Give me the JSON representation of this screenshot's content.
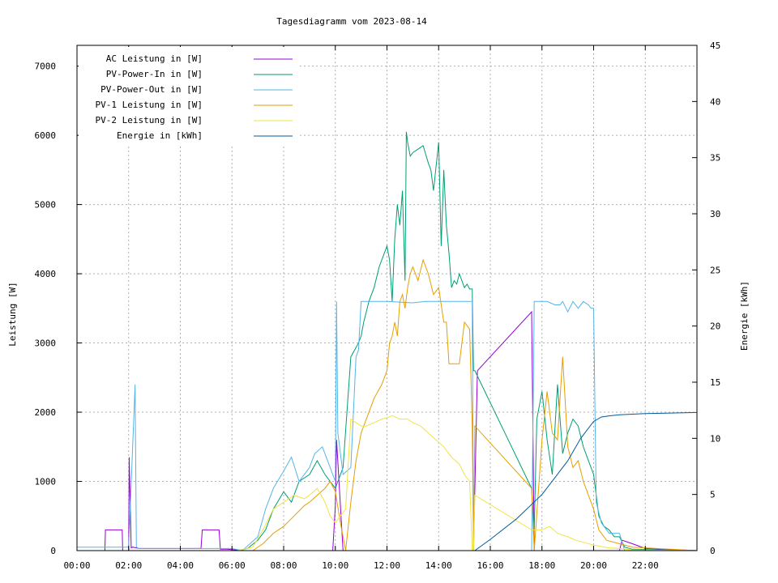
{
  "chart_data": {
    "type": "line",
    "title": "Tagesdiagramm vom 2023-08-14",
    "xlabel": "",
    "ylabel": "Leistung [W]",
    "y2label": "Energie [kWh]",
    "xlim": [
      0,
      24
    ],
    "ylim": [
      0,
      7300
    ],
    "y2lim": [
      0,
      45
    ],
    "grid": true,
    "legend_position": "top-left",
    "x_ticks": [
      "00:00",
      "02:00",
      "04:00",
      "06:00",
      "08:00",
      "10:00",
      "12:00",
      "14:00",
      "16:00",
      "18:00",
      "20:00",
      "22:00"
    ],
    "x_tick_values": [
      0,
      2,
      4,
      6,
      8,
      10,
      12,
      14,
      16,
      18,
      20,
      22
    ],
    "y_ticks": [
      0,
      1000,
      2000,
      3000,
      4000,
      5000,
      6000,
      7000
    ],
    "y2_ticks": [
      0,
      5,
      10,
      15,
      20,
      25,
      30,
      35,
      40,
      45
    ],
    "series": [
      {
        "name": "AC Leistung in [W]",
        "color": "#9400d3",
        "axis": "left",
        "x": [
          0,
          1.0,
          1.08,
          1.1,
          1.75,
          1.77,
          1.9,
          2.0,
          2.02,
          2.1,
          2.15,
          2.3,
          2.4,
          4.2,
          4.8,
          4.85,
          5.5,
          5.55,
          5.8,
          6.5,
          7,
          8,
          9,
          9.9,
          10.0,
          10.05,
          10.3,
          15.3,
          15.35,
          15.5,
          17.6,
          17.7,
          20.0,
          21.0,
          21.1,
          21.5,
          22.0,
          24.0
        ],
        "values": [
          0,
          0,
          0,
          300,
          300,
          0,
          0,
          0,
          1350,
          40,
          50,
          40,
          30,
          30,
          30,
          300,
          300,
          20,
          20,
          0,
          0,
          0,
          0,
          0,
          650,
          1600,
          0,
          0,
          0,
          2600,
          3450,
          0,
          0,
          0,
          150,
          100,
          30,
          0
        ]
      },
      {
        "name": "PV-Power-In in [W]",
        "color": "#009e73",
        "axis": "left",
        "x": [
          0,
          6.2,
          6.6,
          7.0,
          7.3,
          7.6,
          8.0,
          8.3,
          8.6,
          9.0,
          9.3,
          9.6,
          10.0,
          10.3,
          10.6,
          10.9,
          11.0,
          11.1,
          11.3,
          11.5,
          11.7,
          11.9,
          12.0,
          12.1,
          12.2,
          12.3,
          12.4,
          12.5,
          12.6,
          12.7,
          12.75,
          12.8,
          12.9,
          13.0,
          13.2,
          13.4,
          13.6,
          13.7,
          13.8,
          14.0,
          14.1,
          14.2,
          14.3,
          14.4,
          14.5,
          14.6,
          14.7,
          14.8,
          14.9,
          15.0,
          15.1,
          15.2,
          15.3,
          15.35,
          15.4,
          17.6,
          17.7,
          17.8,
          18.0,
          18.2,
          18.4,
          18.6,
          18.8,
          19.0,
          19.2,
          19.4,
          19.6,
          19.8,
          20.0,
          20.1,
          20.2,
          20.4,
          20.6,
          20.8,
          21.0,
          21.2,
          21.5,
          24.0
        ],
        "values": [
          0,
          0,
          30,
          150,
          300,
          600,
          850,
          700,
          1000,
          1100,
          1300,
          1100,
          900,
          1200,
          2800,
          3000,
          3100,
          3300,
          3600,
          3800,
          4100,
          4300,
          4400,
          4200,
          3600,
          4500,
          5000,
          4700,
          5200,
          3900,
          6050,
          5900,
          5700,
          5750,
          5800,
          5850,
          5600,
          5500,
          5200,
          5900,
          4400,
          5500,
          4700,
          4300,
          3800,
          3900,
          3850,
          4000,
          3900,
          3800,
          3850,
          3780,
          3780,
          2600,
          2600,
          900,
          300,
          1900,
          2300,
          1600,
          1100,
          2400,
          1400,
          1700,
          1900,
          1800,
          1500,
          1300,
          1100,
          800,
          500,
          350,
          300,
          200,
          200,
          50,
          20,
          0
        ]
      },
      {
        "name": "PV-Power-Out in [W]",
        "color": "#56b4e9",
        "axis": "left",
        "x": [
          0,
          1.1,
          2.0,
          2.25,
          2.3,
          2.4,
          6.0,
          6.4,
          7.0,
          7.3,
          7.6,
          8.0,
          8.3,
          8.6,
          9.0,
          9.2,
          9.5,
          9.7,
          10.0,
          10.05,
          10.1,
          10.3,
          10.6,
          10.8,
          10.9,
          11.0,
          11.1,
          11.3,
          11.5,
          11.7,
          11.8,
          12.0,
          12.5,
          13.0,
          13.5,
          14.0,
          14.5,
          15.0,
          15.3,
          15.35,
          15.4,
          17.6,
          17.7,
          18.0,
          18.2,
          18.5,
          18.7,
          18.8,
          19.0,
          19.2,
          19.4,
          19.6,
          19.8,
          19.9,
          20.0,
          20.1,
          20.3,
          20.6,
          21.0,
          21.2,
          21.5,
          24.0
        ],
        "values": [
          50,
          50,
          50,
          2400,
          50,
          30,
          30,
          0,
          200,
          600,
          900,
          1150,
          1350,
          1000,
          1200,
          1400,
          1500,
          1300,
          1000,
          3600,
          1700,
          1100,
          1200,
          2800,
          2900,
          3600,
          3600,
          3600,
          3600,
          3600,
          3600,
          3600,
          3590,
          3580,
          3600,
          3600,
          3600,
          3600,
          3600,
          0,
          0,
          0,
          3600,
          3600,
          3600,
          3550,
          3550,
          3600,
          3450,
          3600,
          3500,
          3600,
          3550,
          3500,
          3500,
          700,
          400,
          250,
          250,
          0,
          0,
          0
        ]
      },
      {
        "name": "PV-1 Leistung in [W]",
        "color": "#e69f00",
        "axis": "left",
        "x": [
          0,
          6.2,
          6.8,
          7.2,
          7.6,
          8.0,
          8.4,
          8.8,
          9.0,
          9.3,
          9.6,
          9.8,
          10.0,
          10.2,
          10.4,
          10.6,
          10.8,
          11.0,
          11.2,
          11.5,
          11.8,
          12.0,
          12.1,
          12.2,
          12.3,
          12.4,
          12.5,
          12.6,
          12.7,
          12.8,
          12.9,
          13.0,
          13.2,
          13.4,
          13.6,
          13.8,
          14.0,
          14.2,
          14.3,
          14.4,
          14.5,
          14.6,
          14.8,
          15.0,
          15.2,
          15.3,
          15.35,
          15.4,
          17.6,
          17.7,
          18.0,
          18.2,
          18.4,
          18.6,
          18.8,
          19.0,
          19.2,
          19.4,
          19.6,
          19.8,
          20.0,
          20.2,
          20.5,
          21.0,
          21.5,
          24.0
        ],
        "values": [
          0,
          0,
          0,
          100,
          250,
          350,
          500,
          650,
          700,
          800,
          900,
          1000,
          850,
          400,
          0,
          700,
          1300,
          1700,
          1900,
          2200,
          2400,
          2600,
          3000,
          3100,
          3300,
          3100,
          3600,
          3700,
          3500,
          3800,
          4000,
          4100,
          3900,
          4200,
          4000,
          3700,
          3800,
          3300,
          3300,
          2700,
          2700,
          2700,
          2700,
          3300,
          3200,
          1800,
          0,
          1800,
          900,
          0,
          1600,
          2300,
          1700,
          1600,
          2800,
          1500,
          1200,
          1300,
          1000,
          800,
          600,
          300,
          150,
          100,
          50,
          0
        ]
      },
      {
        "name": "PV-2 Leistung in [W]",
        "color": "#f0e442",
        "axis": "left",
        "x": [
          0,
          6.2,
          6.8,
          7.2,
          7.6,
          8.0,
          8.4,
          8.8,
          9.0,
          9.3,
          9.6,
          9.8,
          10.0,
          10.2,
          10.4,
          10.6,
          10.8,
          11.0,
          11.2,
          11.5,
          11.8,
          12.0,
          12.2,
          12.5,
          12.8,
          13.0,
          13.3,
          13.6,
          13.9,
          14.2,
          14.5,
          14.8,
          15.0,
          15.2,
          15.3,
          15.35,
          15.4,
          17.6,
          18.0,
          18.3,
          18.6,
          19.0,
          19.3,
          19.6,
          20.0,
          20.3,
          20.6,
          21.0,
          21.5,
          24.0
        ],
        "values": [
          0,
          0,
          50,
          300,
          600,
          700,
          800,
          750,
          800,
          900,
          700,
          500,
          400,
          500,
          600,
          1900,
          1850,
          1800,
          1800,
          1850,
          1900,
          1920,
          1950,
          1900,
          1900,
          1850,
          1800,
          1700,
          1600,
          1500,
          1350,
          1250,
          1100,
          1000,
          0,
          0,
          800,
          300,
          300,
          350,
          250,
          200,
          150,
          120,
          80,
          60,
          40,
          30,
          10,
          0
        ]
      },
      {
        "name": "Energie in [kWh]",
        "color": "#00599d",
        "axis": "right",
        "x": [
          0,
          15.35,
          15.4,
          16.0,
          17.0,
          18.0,
          18.5,
          19.0,
          19.5,
          20.0,
          20.3,
          20.6,
          21.0,
          22.0,
          23.0,
          24.0
        ],
        "values": [
          0,
          0,
          0,
          1.0,
          2.8,
          5.0,
          6.5,
          8.0,
          10.0,
          11.5,
          11.9,
          12.0,
          12.1,
          12.2,
          12.25,
          12.3
        ]
      }
    ]
  }
}
